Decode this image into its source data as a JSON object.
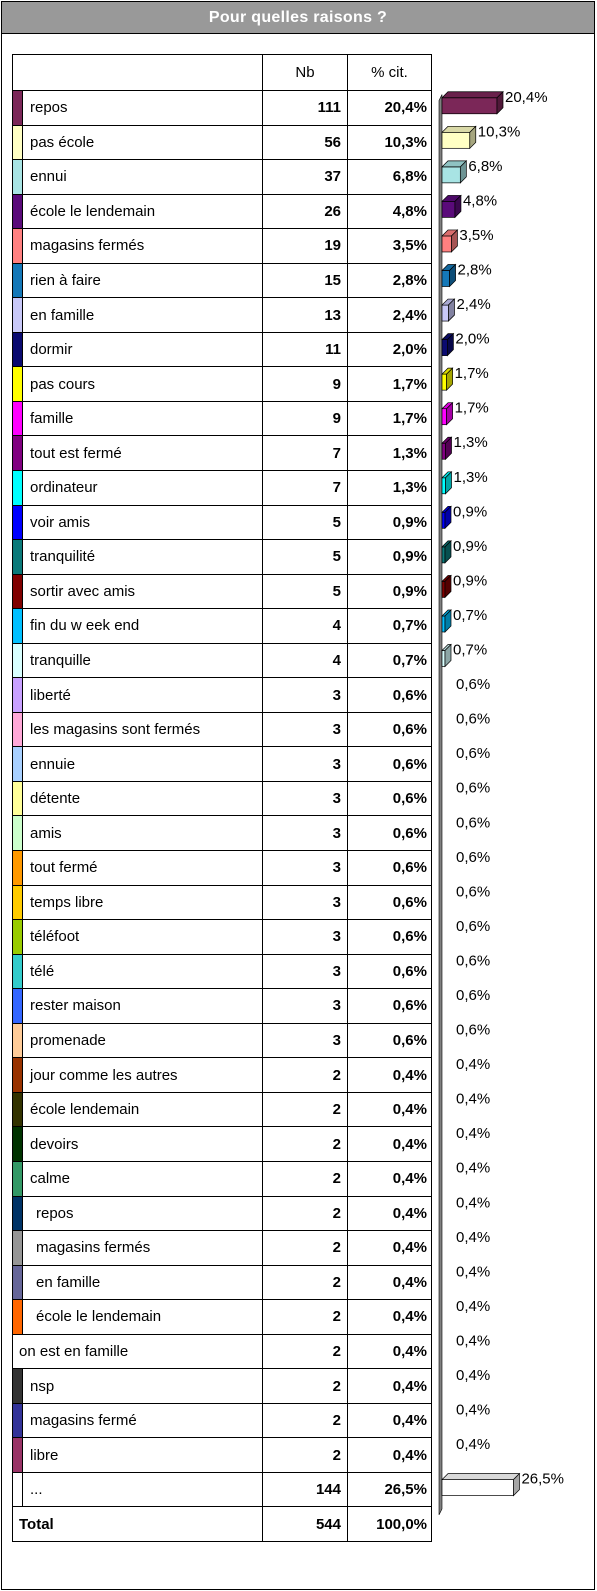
{
  "title": "Pour quelles raisons ?",
  "table": {
    "header_nb": "Nb",
    "header_pct": "% cit."
  },
  "chart_data": {
    "type": "bar",
    "orientation": "horizontal",
    "title": "Pour quelles raisons ?",
    "columns": [
      "Nb",
      "% cit."
    ],
    "rows": [
      {
        "label": "repos",
        "nb": "111",
        "pct": "20,4%",
        "value": 20.4,
        "color": "#7b2758",
        "indent": false
      },
      {
        "label": "pas école",
        "nb": "56",
        "pct": "10,3%",
        "value": 10.3,
        "color": "#ffffc4",
        "indent": false
      },
      {
        "label": "ennui",
        "nb": "37",
        "pct": "6,8%",
        "value": 6.8,
        "color": "#a8e4e4",
        "indent": false
      },
      {
        "label": "école le lendemain",
        "nb": "26",
        "pct": "4,8%",
        "value": 4.8,
        "color": "#5a0a7a",
        "indent": false
      },
      {
        "label": "magasins fermés",
        "nb": "19",
        "pct": "3,5%",
        "value": 3.5,
        "color": "#ff8080",
        "indent": false
      },
      {
        "label": "rien à faire",
        "nb": "15",
        "pct": "2,8%",
        "value": 2.8,
        "color": "#1478b8",
        "indent": false
      },
      {
        "label": "en famille",
        "nb": "13",
        "pct": "2,4%",
        "value": 2.4,
        "color": "#c8c8f8",
        "indent": false
      },
      {
        "label": "dormir",
        "nb": "11",
        "pct": "2,0%",
        "value": 2.0,
        "color": "#0a0a70",
        "indent": false
      },
      {
        "label": "pas cours",
        "nb": "9",
        "pct": "1,7%",
        "value": 1.7,
        "color": "#ffff00",
        "indent": false
      },
      {
        "label": "famille",
        "nb": "9",
        "pct": "1,7%",
        "value": 1.7,
        "color": "#ff00ff",
        "indent": false
      },
      {
        "label": "tout est fermé",
        "nb": "7",
        "pct": "1,3%",
        "value": 1.3,
        "color": "#800080",
        "indent": false
      },
      {
        "label": "ordinateur",
        "nb": "7",
        "pct": "1,3%",
        "value": 1.3,
        "color": "#00ffff",
        "indent": false
      },
      {
        "label": "voir amis",
        "nb": "5",
        "pct": "0,9%",
        "value": 0.9,
        "color": "#0000ff",
        "indent": false
      },
      {
        "label": "tranquilité",
        "nb": "5",
        "pct": "0,9%",
        "value": 0.9,
        "color": "#0a7a7a",
        "indent": false
      },
      {
        "label": "sortir avec amis",
        "nb": "5",
        "pct": "0,9%",
        "value": 0.9,
        "color": "#800000",
        "indent": false
      },
      {
        "label": "fin du w eek end",
        "nb": "4",
        "pct": "0,7%",
        "value": 0.7,
        "color": "#00c0ff",
        "indent": false
      },
      {
        "label": "tranquille",
        "nb": "4",
        "pct": "0,7%",
        "value": 0.7,
        "color": "#d8ffff",
        "indent": false
      },
      {
        "label": "liberté",
        "nb": "3",
        "pct": "0,6%",
        "value": 0.6,
        "color": "#c8a0ff",
        "indent": false
      },
      {
        "label": "les magasins sont fermés",
        "nb": "3",
        "pct": "0,6%",
        "value": 0.6,
        "color": "#ffa8d8",
        "indent": false
      },
      {
        "label": "ennuie",
        "nb": "3",
        "pct": "0,6%",
        "value": 0.6,
        "color": "#a8d0ff",
        "indent": false
      },
      {
        "label": "détente",
        "nb": "3",
        "pct": "0,6%",
        "value": 0.6,
        "color": "#ffff99",
        "indent": false
      },
      {
        "label": "amis",
        "nb": "3",
        "pct": "0,6%",
        "value": 0.6,
        "color": "#ccffcc",
        "indent": false
      },
      {
        "label": "tout fermé",
        "nb": "3",
        "pct": "0,6%",
        "value": 0.6,
        "color": "#ff9900",
        "indent": false
      },
      {
        "label": "temps libre",
        "nb": "3",
        "pct": "0,6%",
        "value": 0.6,
        "color": "#ffcc00",
        "indent": false
      },
      {
        "label": "téléfoot",
        "nb": "3",
        "pct": "0,6%",
        "value": 0.6,
        "color": "#99cc00",
        "indent": false
      },
      {
        "label": "télé",
        "nb": "3",
        "pct": "0,6%",
        "value": 0.6,
        "color": "#33cccc",
        "indent": false
      },
      {
        "label": "rester maison",
        "nb": "3",
        "pct": "0,6%",
        "value": 0.6,
        "color": "#3366ff",
        "indent": false
      },
      {
        "label": "promenade",
        "nb": "3",
        "pct": "0,6%",
        "value": 0.6,
        "color": "#ffcc99",
        "indent": false
      },
      {
        "label": "jour comme les autres",
        "nb": "2",
        "pct": "0,4%",
        "value": 0.4,
        "color": "#993300",
        "indent": false
      },
      {
        "label": "école lendemain",
        "nb": "2",
        "pct": "0,4%",
        "value": 0.4,
        "color": "#333300",
        "indent": false
      },
      {
        "label": "devoirs",
        "nb": "2",
        "pct": "0,4%",
        "value": 0.4,
        "color": "#003300",
        "indent": false
      },
      {
        "label": "calme",
        "nb": "2",
        "pct": "0,4%",
        "value": 0.4,
        "color": "#339966",
        "indent": false
      },
      {
        "label": "repos",
        "nb": "2",
        "pct": "0,4%",
        "value": 0.4,
        "color": "#003366",
        "indent": true
      },
      {
        "label": "magasins fermés",
        "nb": "2",
        "pct": "0,4%",
        "value": 0.4,
        "color": "#969696",
        "indent": true
      },
      {
        "label": "en famille",
        "nb": "2",
        "pct": "0,4%",
        "value": 0.4,
        "color": "#666699",
        "indent": true
      },
      {
        "label": "école le lendemain",
        "nb": "2",
        "pct": "0,4%",
        "value": 0.4,
        "color": "#ff6600",
        "indent": true
      },
      {
        "label": "on est en famille",
        "nb": "2",
        "pct": "0,4%",
        "value": 0.4,
        "color": "",
        "indent": false
      },
      {
        "label": "nsp",
        "nb": "2",
        "pct": "0,4%",
        "value": 0.4,
        "color": "#333333",
        "indent": false
      },
      {
        "label": "magasins fermé",
        "nb": "2",
        "pct": "0,4%",
        "value": 0.4,
        "color": "#333399",
        "indent": false
      },
      {
        "label": "libre",
        "nb": "2",
        "pct": "0,4%",
        "value": 0.4,
        "color": "#993366",
        "indent": false
      },
      {
        "label": "...",
        "nb": "144",
        "pct": "26,5%",
        "value": 26.5,
        "color": "#ffffff",
        "indent": false
      }
    ],
    "total": {
      "label": "Total",
      "nb": "544",
      "pct": "100,0%"
    },
    "bars_drawn_min_value": 0.7,
    "other_bar_color": "#ffffff"
  }
}
